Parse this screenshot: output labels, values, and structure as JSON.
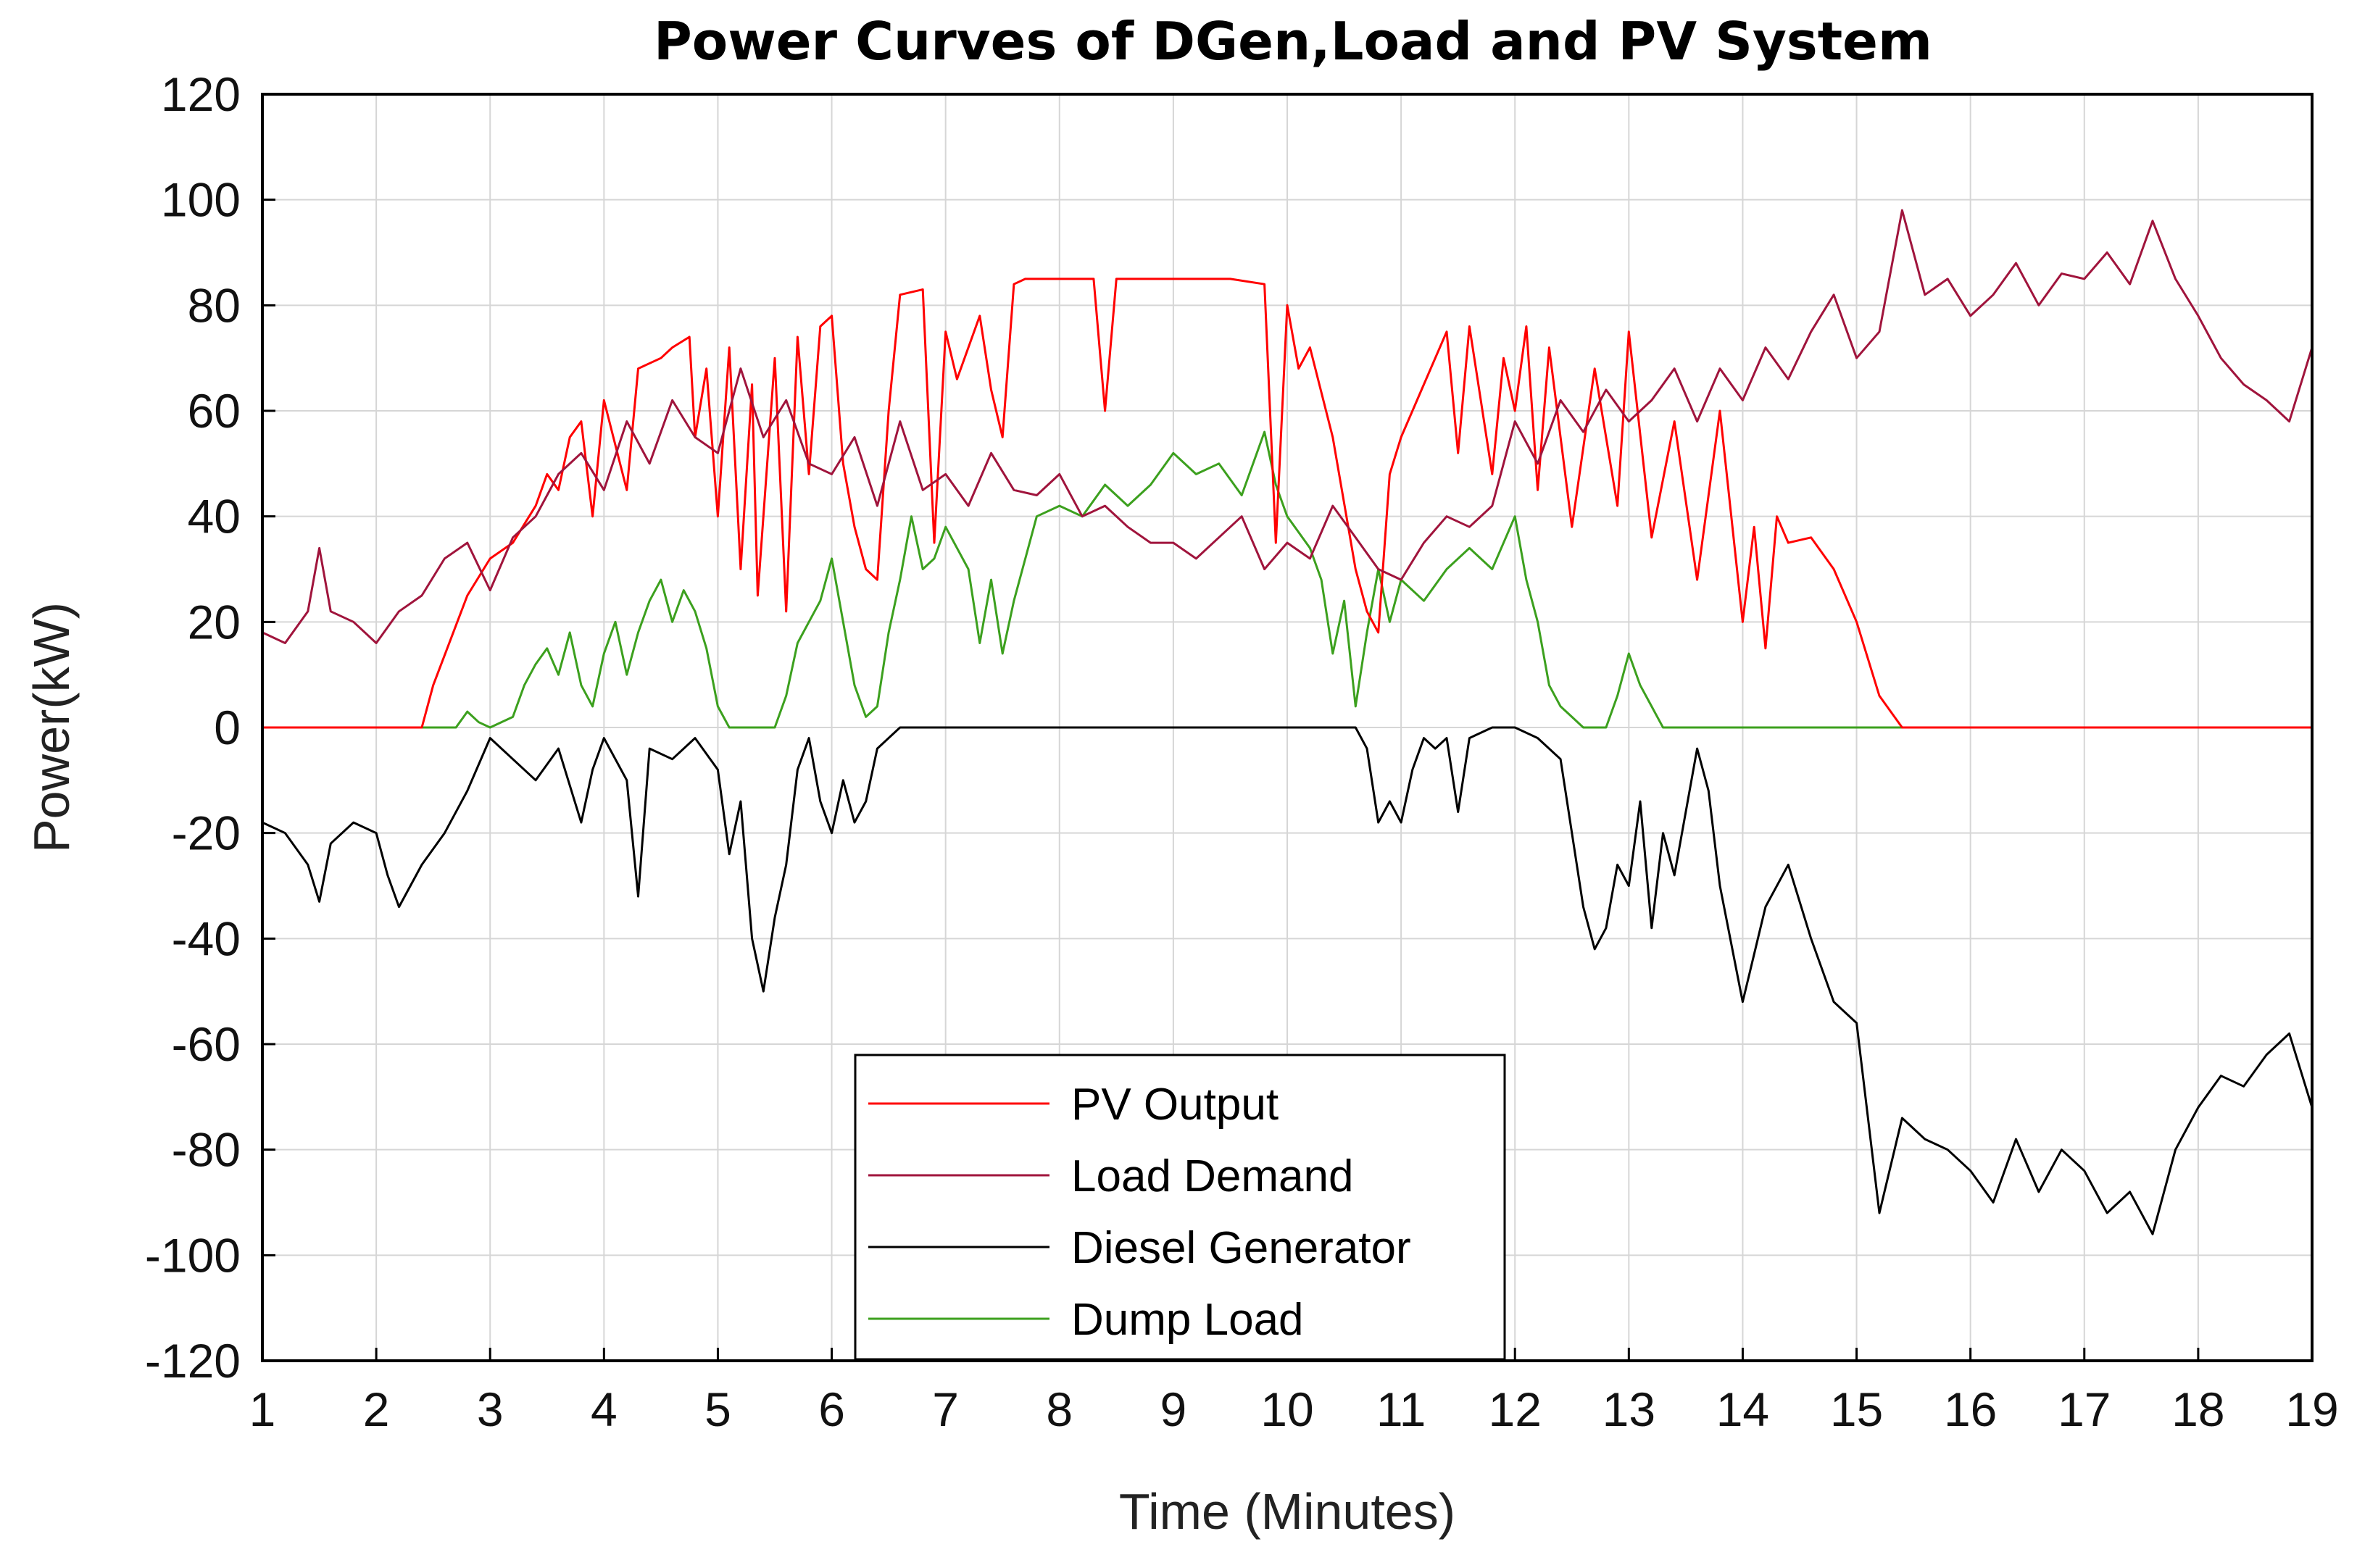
{
  "chart_data": {
    "type": "line",
    "title": "Power Curves of DGen,Load and PV System",
    "xlabel": "Time (Minutes)",
    "ylabel": "Power(kW)",
    "xlim": [
      1,
      19
    ],
    "ylim": [
      -120,
      120
    ],
    "xticks": [
      "1",
      "2",
      "3",
      "4",
      "5",
      "6",
      "7",
      "8",
      "9",
      "10",
      "11",
      "12",
      "13",
      "14",
      "15",
      "16",
      "17",
      "18",
      "19"
    ],
    "yticks": [
      "120",
      "100",
      "80",
      "60",
      "40",
      "20",
      "0",
      "-20",
      "-40",
      "-60",
      "-80",
      "-100",
      "-120"
    ],
    "grid": true,
    "legend_position": "bottom-center",
    "series": [
      {
        "name": "PV Output",
        "color": "#ff0000",
        "x": [
          1,
          2.4,
          2.5,
          2.8,
          3.0,
          3.2,
          3.4,
          3.5,
          3.6,
          3.7,
          3.8,
          3.9,
          4.0,
          4.2,
          4.3,
          4.5,
          4.6,
          4.75,
          4.8,
          4.9,
          5.0,
          5.1,
          5.2,
          5.3,
          5.35,
          5.5,
          5.6,
          5.7,
          5.8,
          5.9,
          6.0,
          6.1,
          6.2,
          6.3,
          6.4,
          6.5,
          6.6,
          6.8,
          6.9,
          7.0,
          7.1,
          7.3,
          7.4,
          7.5,
          7.6,
          7.7,
          7.8,
          8.0,
          8.3,
          8.4,
          8.5,
          8.6,
          9.0,
          9.5,
          9.8,
          9.9,
          10.0,
          10.1,
          10.2,
          10.4,
          10.6,
          10.7,
          10.8,
          10.9,
          11.0,
          11.2,
          11.4,
          11.5,
          11.6,
          11.8,
          11.9,
          12.0,
          12.1,
          12.2,
          12.3,
          12.5,
          12.7,
          12.9,
          13.0,
          13.2,
          13.4,
          13.6,
          13.8,
          14.0,
          14.1,
          14.2,
          14.3,
          14.4,
          14.6,
          14.8,
          15.0,
          15.2,
          15.4,
          19
        ],
        "y": [
          0,
          0,
          8,
          25,
          32,
          35,
          42,
          48,
          45,
          55,
          58,
          40,
          62,
          45,
          68,
          70,
          72,
          74,
          55,
          68,
          40,
          72,
          30,
          65,
          25,
          70,
          22,
          74,
          48,
          76,
          78,
          50,
          38,
          30,
          28,
          60,
          82,
          83,
          35,
          75,
          66,
          78,
          64,
          55,
          84,
          85,
          85,
          85,
          85,
          60,
          85,
          85,
          85,
          85,
          84,
          35,
          80,
          68,
          72,
          55,
          30,
          22,
          18,
          48,
          55,
          65,
          75,
          52,
          76,
          48,
          70,
          60,
          76,
          45,
          72,
          38,
          68,
          42,
          75,
          36,
          58,
          28,
          60,
          20,
          38,
          15,
          40,
          35,
          36,
          30,
          20,
          6,
          0,
          0
        ]
      },
      {
        "name": "Load Demand",
        "color": "#a0143c",
        "x": [
          1,
          1.2,
          1.4,
          1.5,
          1.6,
          1.8,
          2.0,
          2.2,
          2.4,
          2.6,
          2.8,
          3.0,
          3.2,
          3.4,
          3.6,
          3.8,
          4.0,
          4.2,
          4.4,
          4.6,
          4.8,
          5.0,
          5.2,
          5.4,
          5.6,
          5.8,
          6.0,
          6.2,
          6.4,
          6.6,
          6.8,
          7.0,
          7.2,
          7.4,
          7.6,
          7.8,
          8.0,
          8.2,
          8.4,
          8.6,
          8.8,
          9.0,
          9.2,
          9.4,
          9.6,
          9.8,
          10.0,
          10.2,
          10.4,
          10.6,
          10.8,
          11.0,
          11.2,
          11.4,
          11.6,
          11.8,
          12.0,
          12.2,
          12.4,
          12.6,
          12.8,
          13.0,
          13.2,
          13.4,
          13.6,
          13.8,
          14.0,
          14.2,
          14.4,
          14.6,
          14.8,
          15.0,
          15.2,
          15.4,
          15.6,
          15.8,
          16.0,
          16.2,
          16.4,
          16.6,
          16.8,
          17.0,
          17.2,
          17.4,
          17.6,
          17.8,
          18.0,
          18.2,
          18.4,
          18.6,
          18.8,
          19.0
        ],
        "y": [
          18,
          16,
          22,
          34,
          22,
          20,
          16,
          22,
          25,
          32,
          35,
          26,
          36,
          40,
          48,
          52,
          45,
          58,
          50,
          62,
          55,
          52,
          68,
          55,
          62,
          50,
          48,
          55,
          42,
          58,
          45,
          48,
          42,
          52,
          45,
          44,
          48,
          40,
          42,
          38,
          35,
          35,
          32,
          36,
          40,
          30,
          35,
          32,
          42,
          36,
          30,
          28,
          35,
          40,
          38,
          42,
          58,
          50,
          62,
          56,
          64,
          58,
          62,
          68,
          58,
          68,
          62,
          72,
          66,
          75,
          82,
          70,
          75,
          98,
          82,
          85,
          78,
          82,
          88,
          80,
          86,
          85,
          90,
          84,
          96,
          85,
          78,
          70,
          65,
          62,
          58,
          72
        ]
      },
      {
        "name": "Diesel Generator",
        "color": "#000000",
        "x": [
          1,
          1.2,
          1.4,
          1.5,
          1.6,
          1.8,
          2.0,
          2.1,
          2.2,
          2.4,
          2.6,
          2.8,
          3.0,
          3.2,
          3.4,
          3.6,
          3.8,
          3.9,
          4.0,
          4.2,
          4.3,
          4.4,
          4.6,
          4.8,
          5.0,
          5.1,
          5.2,
          5.3,
          5.4,
          5.5,
          5.6,
          5.7,
          5.8,
          5.9,
          6.0,
          6.1,
          6.2,
          6.3,
          6.4,
          6.6,
          8.0,
          10.0,
          10.6,
          10.7,
          10.8,
          10.9,
          11.0,
          11.1,
          11.2,
          11.3,
          11.4,
          11.5,
          11.6,
          11.8,
          12.0,
          12.2,
          12.4,
          12.6,
          12.7,
          12.8,
          12.9,
          13.0,
          13.1,
          13.2,
          13.3,
          13.4,
          13.6,
          13.7,
          13.8,
          14.0,
          14.2,
          14.4,
          14.6,
          14.8,
          15.0,
          15.2,
          15.4,
          15.6,
          15.8,
          16.0,
          16.2,
          16.4,
          16.6,
          16.8,
          17.0,
          17.2,
          17.4,
          17.6,
          17.8,
          18.0,
          18.2,
          18.4,
          18.6,
          18.8,
          19.0
        ],
        "y": [
          -18,
          -20,
          -26,
          -33,
          -22,
          -18,
          -20,
          -28,
          -34,
          -26,
          -20,
          -12,
          -2,
          -6,
          -10,
          -4,
          -18,
          -8,
          -2,
          -10,
          -32,
          -4,
          -6,
          -2,
          -8,
          -24,
          -14,
          -40,
          -50,
          -36,
          -26,
          -8,
          -2,
          -14,
          -20,
          -10,
          -18,
          -14,
          -4,
          0,
          0,
          0,
          0,
          -4,
          -18,
          -14,
          -18,
          -8,
          -2,
          -4,
          -2,
          -16,
          -2,
          0,
          0,
          -2,
          -6,
          -34,
          -42,
          -38,
          -26,
          -30,
          -14,
          -38,
          -20,
          -28,
          -4,
          -12,
          -30,
          -52,
          -34,
          -26,
          -40,
          -52,
          -56,
          -92,
          -74,
          -78,
          -80,
          -84,
          -90,
          -78,
          -88,
          -80,
          -84,
          -92,
          -88,
          -96,
          -80,
          -72,
          -66,
          -68,
          -62,
          -58,
          -72
        ]
      },
      {
        "name": "Dump Load",
        "color": "#3ca01e",
        "x": [
          1,
          2.7,
          2.8,
          2.9,
          3.0,
          3.2,
          3.3,
          3.4,
          3.5,
          3.6,
          3.7,
          3.8,
          3.9,
          4.0,
          4.1,
          4.2,
          4.3,
          4.4,
          4.5,
          4.6,
          4.7,
          4.8,
          4.9,
          5.0,
          5.1,
          5.5,
          5.6,
          5.7,
          5.8,
          5.9,
          6.0,
          6.1,
          6.2,
          6.3,
          6.4,
          6.5,
          6.6,
          6.7,
          6.8,
          6.9,
          7.0,
          7.2,
          7.3,
          7.4,
          7.5,
          7.6,
          7.8,
          8.0,
          8.2,
          8.4,
          8.6,
          8.8,
          9.0,
          9.2,
          9.4,
          9.6,
          9.8,
          9.9,
          10.0,
          10.2,
          10.3,
          10.4,
          10.5,
          10.6,
          10.7,
          10.8,
          10.9,
          11.0,
          11.2,
          11.4,
          11.6,
          11.8,
          12.0,
          12.1,
          12.2,
          12.3,
          12.4,
          12.5,
          12.6,
          12.8,
          12.9,
          13.0,
          13.1,
          13.2,
          13.3,
          19
        ],
        "y": [
          0,
          0,
          3,
          1,
          0,
          2,
          8,
          12,
          15,
          10,
          18,
          8,
          4,
          14,
          20,
          10,
          18,
          24,
          28,
          20,
          26,
          22,
          15,
          4,
          0,
          0,
          6,
          16,
          20,
          24,
          32,
          20,
          8,
          2,
          4,
          18,
          28,
          40,
          30,
          32,
          38,
          30,
          16,
          28,
          14,
          24,
          40,
          42,
          40,
          46,
          42,
          46,
          52,
          48,
          50,
          44,
          56,
          46,
          40,
          34,
          28,
          14,
          24,
          4,
          18,
          30,
          20,
          28,
          24,
          30,
          34,
          30,
          40,
          28,
          20,
          8,
          4,
          2,
          0,
          0,
          6,
          14,
          8,
          4,
          0,
          0
        ]
      }
    ]
  }
}
